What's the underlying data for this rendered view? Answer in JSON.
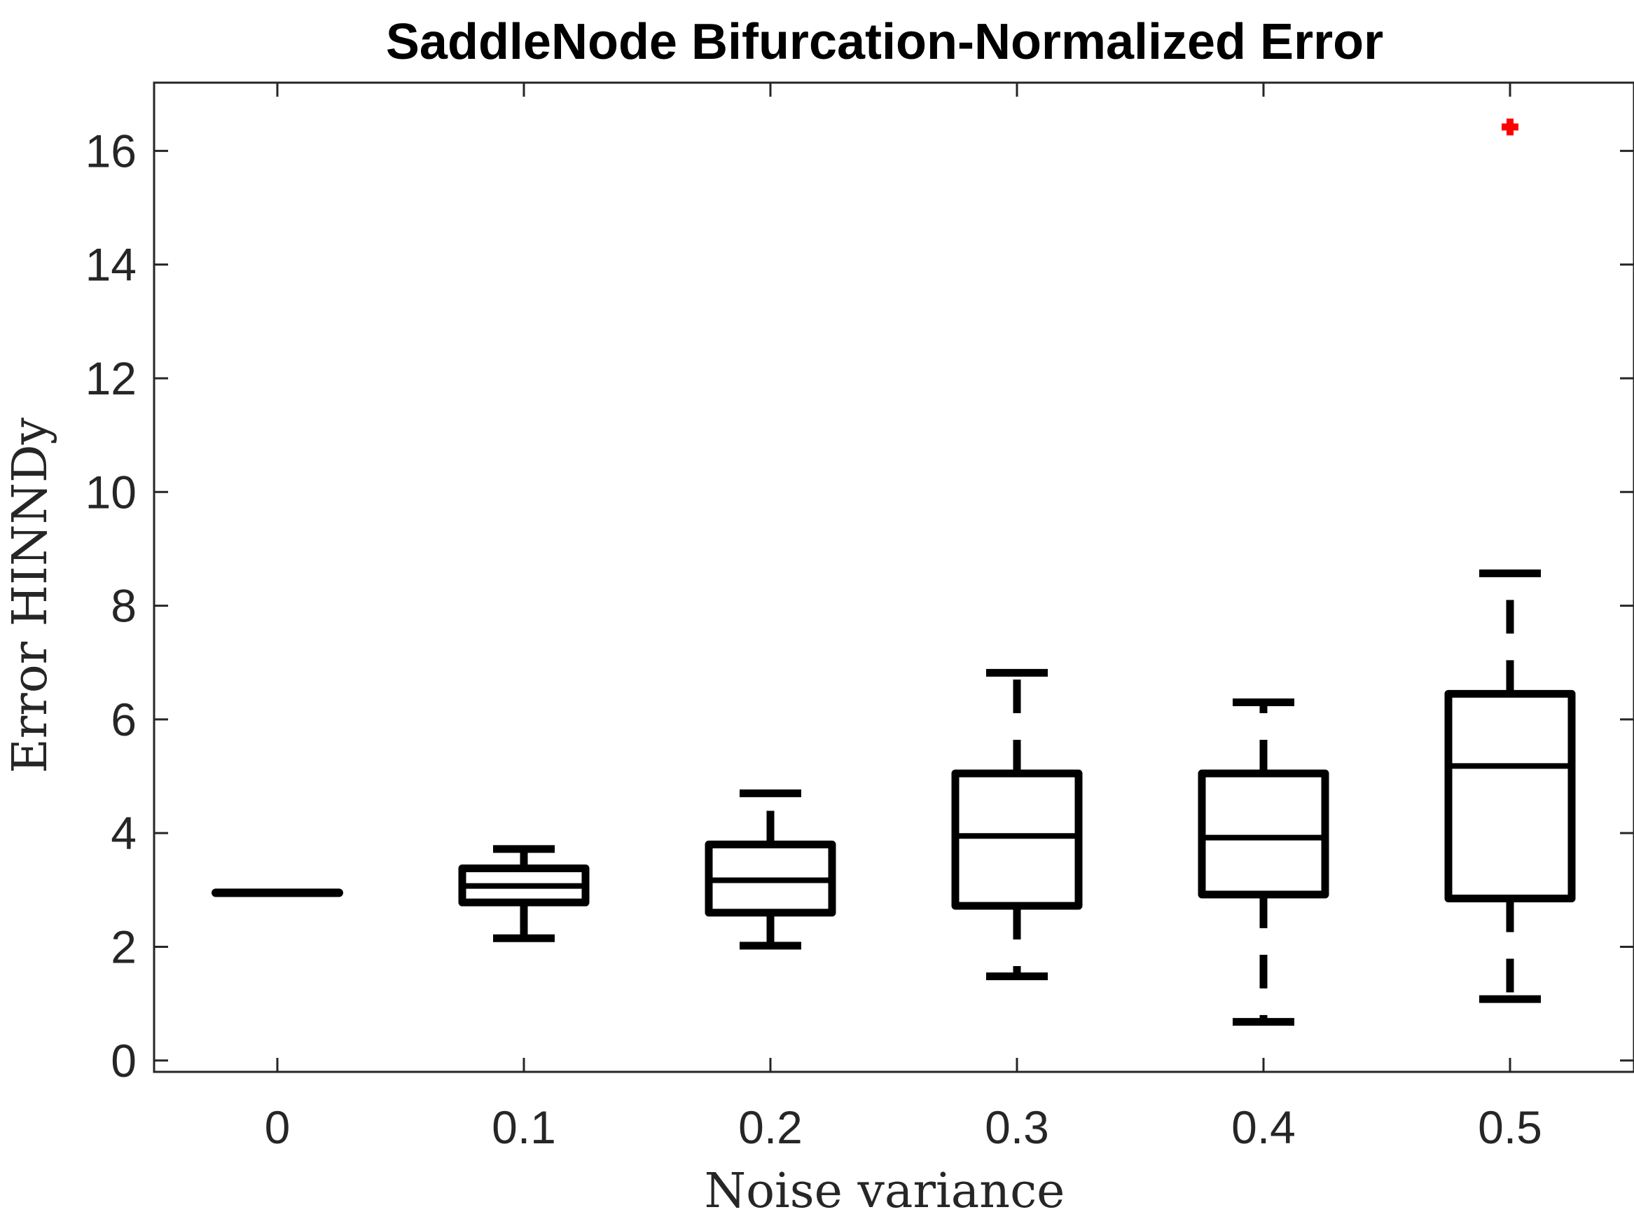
{
  "chart_data": {
    "type": "box",
    "title": "SaddleNode Bifurcation-Normalized Error",
    "xlabel": "Noise variance",
    "ylabel": "Error HINNDy",
    "ylim": [
      -0.2,
      17.2
    ],
    "yticks": [
      "0",
      "2",
      "4",
      "6",
      "8",
      "10",
      "12",
      "14",
      "16"
    ],
    "categories": [
      "0",
      "0.1",
      "0.2",
      "0.3",
      "0.4",
      "0.5"
    ],
    "boxes": [
      {
        "category": "0",
        "whisker_low": 2.95,
        "q1": 2.95,
        "median": 2.95,
        "q3": 2.95,
        "whisker_high": 2.95,
        "outliers": []
      },
      {
        "category": "0.1",
        "whisker_low": 2.15,
        "q1": 2.78,
        "median": 3.07,
        "q3": 3.38,
        "whisker_high": 3.72,
        "outliers": []
      },
      {
        "category": "0.2",
        "whisker_low": 2.02,
        "q1": 2.6,
        "median": 3.17,
        "q3": 3.8,
        "whisker_high": 4.7,
        "outliers": []
      },
      {
        "category": "0.3",
        "whisker_low": 1.48,
        "q1": 2.72,
        "median": 3.95,
        "q3": 5.05,
        "whisker_high": 6.82,
        "outliers": []
      },
      {
        "category": "0.4",
        "whisker_low": 0.68,
        "q1": 2.92,
        "median": 3.92,
        "q3": 5.05,
        "whisker_high": 6.3,
        "outliers": []
      },
      {
        "category": "0.5",
        "whisker_low": 1.08,
        "q1": 2.85,
        "median": 5.18,
        "q3": 6.45,
        "whisker_high": 8.57,
        "outliers": [
          16.42
        ]
      }
    ],
    "outlier_color": "#ff0000",
    "box_color": "#000000",
    "grid": false,
    "legend": "none"
  }
}
